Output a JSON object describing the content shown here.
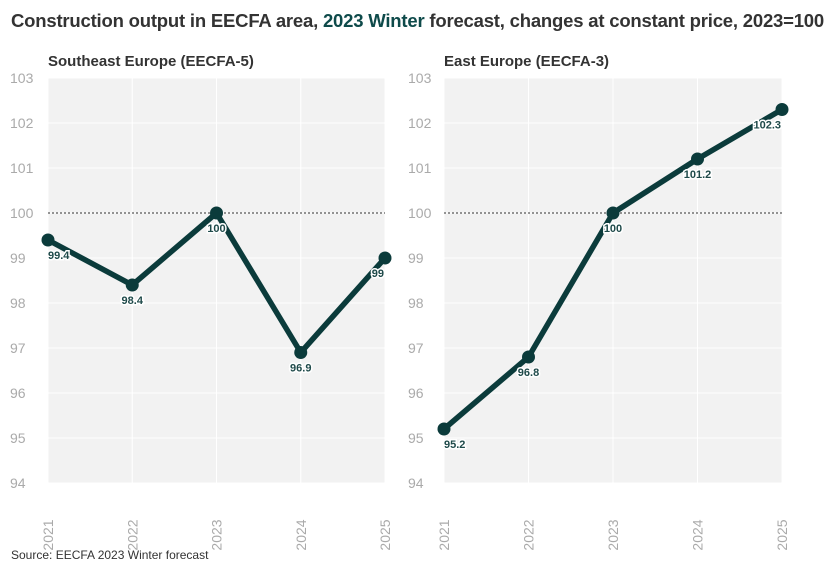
{
  "title": {
    "prefix": "Construction output in EECFA area, ",
    "accent": "2023 Winter",
    "suffix": " forecast, changes at constant price, 2023=100"
  },
  "source": "Source: EECFA 2023 Winter forecast",
  "colors": {
    "line": "#0b3b3b",
    "panel_bg": "#f2f2f2",
    "accent_text": "#0e4a4a",
    "tick_text": "#aaaaaa"
  },
  "chart_data": [
    {
      "type": "line",
      "title": "Southeast Europe (EECFA-5)",
      "x": [
        "2021",
        "2022",
        "2023",
        "2024",
        "2025"
      ],
      "values": [
        99.4,
        98.4,
        100,
        96.9,
        99
      ],
      "labels": [
        "99.4",
        "98.4",
        "100",
        "96.9",
        "99"
      ],
      "yticks": [
        "94",
        "95",
        "96",
        "97",
        "98",
        "99",
        "100",
        "101",
        "102",
        "103"
      ],
      "ylim": [
        94,
        103
      ],
      "reference_line": 100,
      "grid": true
    },
    {
      "type": "line",
      "title": "East Europe (EECFA-3)",
      "x": [
        "2021",
        "2022",
        "2023",
        "2024",
        "2025"
      ],
      "values": [
        95.2,
        96.8,
        100,
        101.2,
        102.3
      ],
      "labels": [
        "95.2",
        "96.8",
        "100",
        "101.2",
        "102.3"
      ],
      "yticks": [
        "94",
        "95",
        "96",
        "97",
        "98",
        "99",
        "100",
        "101",
        "102",
        "103"
      ],
      "ylim": [
        94,
        103
      ],
      "reference_line": 100,
      "grid": true
    }
  ]
}
